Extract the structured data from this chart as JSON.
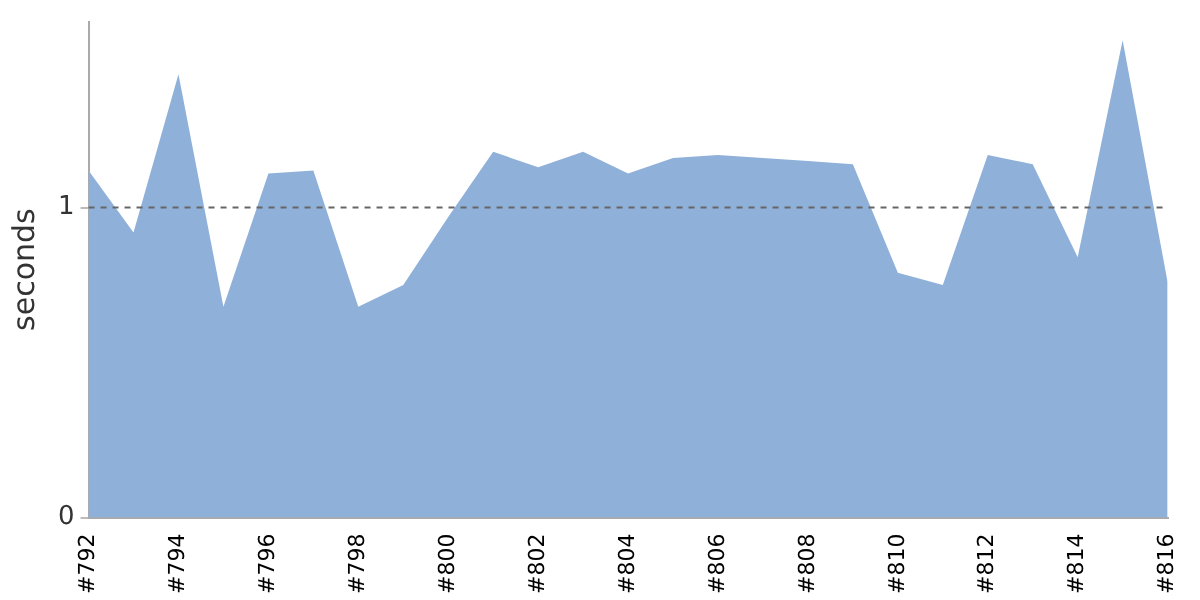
{
  "chart_data": {
    "type": "area",
    "ylabel": "seconds",
    "categories": [
      "#792",
      null,
      "#794",
      null,
      "#796",
      null,
      "#798",
      null,
      "#800",
      null,
      "#802",
      null,
      "#804",
      null,
      "#806",
      null,
      "#808",
      null,
      "#810",
      null,
      "#812",
      null,
      "#814",
      null,
      "#816"
    ],
    "series": [
      {
        "color": "#8fb0d9",
        "values": [
          1.12,
          0.92,
          1.43,
          0.68,
          1.11,
          1.12,
          0.68,
          0.75,
          0.97,
          1.18,
          1.13,
          1.18,
          1.11,
          1.16,
          1.17,
          1.16,
          1.15,
          1.14,
          0.79,
          0.75,
          1.17,
          1.14,
          0.84,
          1.54,
          0.76
        ]
      }
    ],
    "ylim": [
      0,
      1.6
    ],
    "yticks": [
      0,
      1
    ],
    "grid": false,
    "legend": false,
    "ref_lines": [
      {
        "axis": "y",
        "value": 1,
        "color": "#666666",
        "line_style": "dashed"
      }
    ]
  }
}
